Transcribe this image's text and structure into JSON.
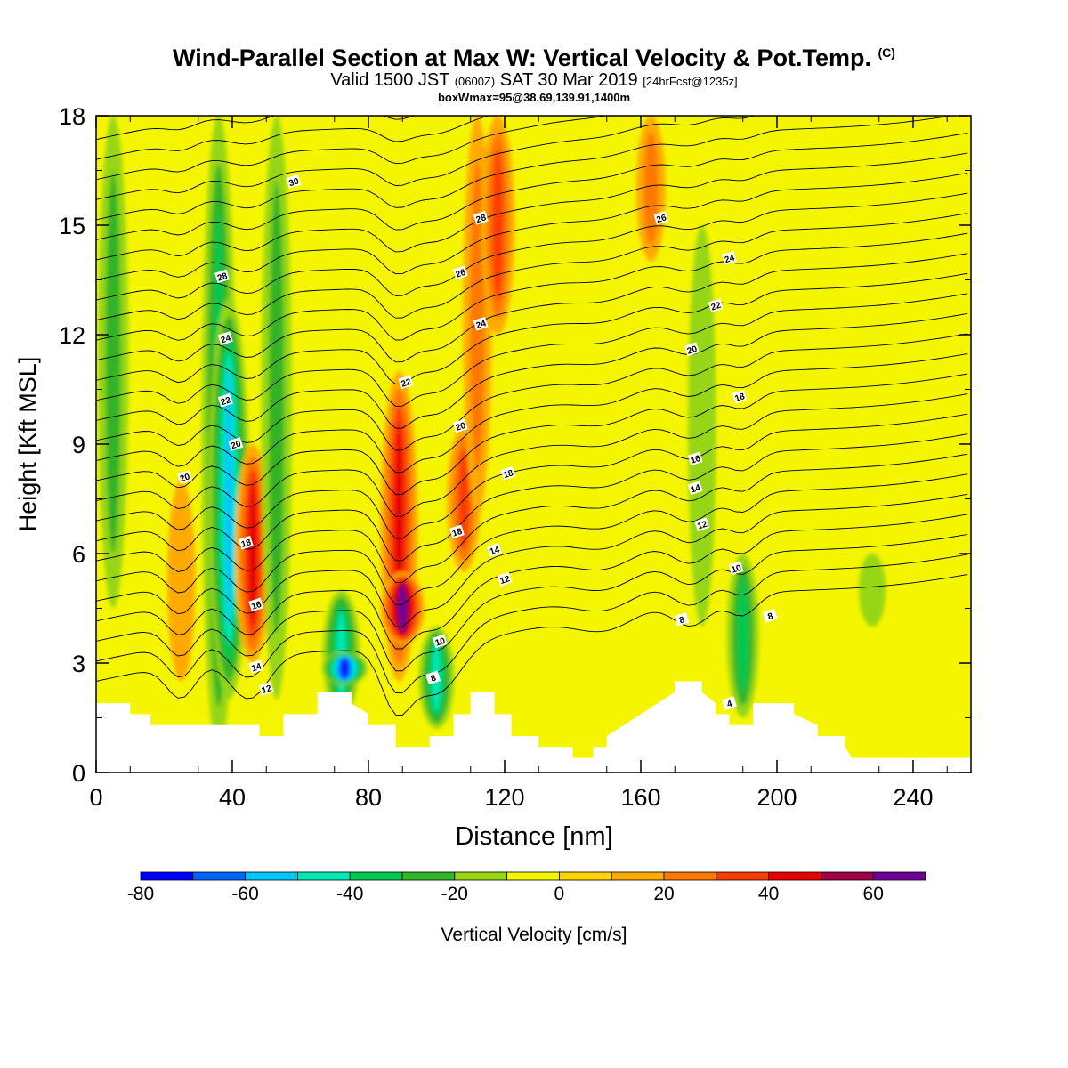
{
  "title": {
    "main": "Wind-Parallel Section at Max W: Vertical Velocity & Pot.Temp.",
    "copyright": "(C)",
    "valid_prefix": "Valid 1500 JST",
    "valid_utc": "(0600Z)",
    "valid_date": "SAT 30 Mar 2019",
    "forecast": "[24hrFcst@1235z]",
    "box": "boxWmax=95@38.69,139.91,1400m"
  },
  "chart_data": {
    "type": "heatmap",
    "xlabel": "Distance [nm]",
    "ylabel": "Height [Kft MSL]",
    "xlim": [
      0,
      257
    ],
    "ylim": [
      0,
      18
    ],
    "x_ticks": [
      "0",
      "40",
      "80",
      "120",
      "160",
      "200",
      "240"
    ],
    "y_ticks": [
      "0",
      "3",
      "6",
      "9",
      "12",
      "15",
      "18"
    ],
    "colorbar": {
      "label": "Vertical Velocity [cm/s]",
      "bins": [
        -80,
        -70,
        -60,
        -50,
        -40,
        -30,
        -20,
        -10,
        0,
        10,
        20,
        30,
        40,
        50,
        60,
        70
      ],
      "tick_labels": [
        "-80",
        "-60",
        "-40",
        "-20",
        "0",
        "20",
        "40",
        "60"
      ],
      "colors": [
        "#0000ff",
        "#0064ff",
        "#00c8ff",
        "#00e6b4",
        "#00c850",
        "#32b428",
        "#96d614",
        "#f5f500",
        "#ffd200",
        "#ffaa00",
        "#ff7800",
        "#ff3c00",
        "#e60000",
        "#a00046",
        "#6e0096"
      ]
    },
    "terrain_profile": [
      [
        0,
        1.9
      ],
      [
        10,
        1.9
      ],
      [
        10,
        1.6
      ],
      [
        16,
        1.6
      ],
      [
        16,
        1.3
      ],
      [
        48,
        1.3
      ],
      [
        48,
        1.0
      ],
      [
        55,
        1.0
      ],
      [
        55,
        1.6
      ],
      [
        65,
        1.6
      ],
      [
        65,
        2.2
      ],
      [
        75,
        2.2
      ],
      [
        75,
        1.9
      ],
      [
        80,
        1.6
      ],
      [
        80,
        1.3
      ],
      [
        88,
        1.3
      ],
      [
        88,
        0.7
      ],
      [
        98,
        0.7
      ],
      [
        98,
        1.0
      ],
      [
        105,
        1.0
      ],
      [
        105,
        1.6
      ],
      [
        110,
        1.6
      ],
      [
        110,
        2.2
      ],
      [
        117,
        2.2
      ],
      [
        117,
        1.6
      ],
      [
        122,
        1.6
      ],
      [
        122,
        1.0
      ],
      [
        130,
        1.0
      ],
      [
        130,
        0.7
      ],
      [
        140,
        0.7
      ],
      [
        140,
        0.4
      ],
      [
        146,
        0.4
      ],
      [
        146,
        0.7
      ],
      [
        150,
        0.7
      ],
      [
        150,
        1.0
      ],
      [
        155,
        1.3
      ],
      [
        160,
        1.6
      ],
      [
        165,
        1.9
      ],
      [
        170,
        2.2
      ],
      [
        170,
        2.5
      ],
      [
        178,
        2.5
      ],
      [
        178,
        2.2
      ],
      [
        182,
        1.9
      ],
      [
        182,
        1.6
      ],
      [
        186,
        1.6
      ],
      [
        186,
        1.3
      ],
      [
        193,
        1.3
      ],
      [
        193,
        1.9
      ],
      [
        205,
        1.9
      ],
      [
        205,
        1.6
      ],
      [
        212,
        1.3
      ],
      [
        212,
        1.0
      ],
      [
        220,
        1.0
      ],
      [
        220,
        0.7
      ],
      [
        222,
        0.4
      ],
      [
        257,
        0.4
      ]
    ],
    "vertical_velocity_features": [
      {
        "x": 5,
        "y0": 4.5,
        "y1": 18,
        "w": -25
      },
      {
        "x": 25,
        "y0": 2.5,
        "y1": 8,
        "w": 18
      },
      {
        "x": 36,
        "y0": 0.5,
        "y1": 18,
        "w": -35
      },
      {
        "x": 39,
        "y0": 2,
        "y1": 13,
        "w": -55
      },
      {
        "x": 46,
        "y0": 3,
        "y1": 9,
        "w": 40
      },
      {
        "x": 53,
        "y0": 2,
        "y1": 18,
        "w": -25
      },
      {
        "x": 72,
        "y0": 1.5,
        "y1": 5,
        "w": -45
      },
      {
        "x": 73,
        "y0": 2.4,
        "y1": 3.3,
        "w": -70
      },
      {
        "x": 89,
        "y0": 2.5,
        "y1": 11,
        "w": 45
      },
      {
        "x": 90,
        "y0": 3.5,
        "y1": 5.5,
        "w": 65
      },
      {
        "x": 100,
        "y0": 1.2,
        "y1": 4,
        "w": -40
      },
      {
        "x": 108,
        "y0": 5.5,
        "y1": 9.5,
        "w": 35
      },
      {
        "x": 112,
        "y0": 7,
        "y1": 18,
        "w": 20
      },
      {
        "x": 118,
        "y0": 12,
        "y1": 18,
        "w": 35
      },
      {
        "x": 163,
        "y0": 14,
        "y1": 18,
        "w": 22
      },
      {
        "x": 178,
        "y0": 4,
        "y1": 15,
        "w": -18
      },
      {
        "x": 190,
        "y0": 1.5,
        "y1": 6,
        "w": -30
      },
      {
        "x": 228,
        "y0": 4,
        "y1": 6,
        "w": -15
      }
    ],
    "theta_contours": {
      "labels": [
        "30",
        "28",
        "26",
        "24",
        "22",
        "20",
        "18",
        "16",
        "14",
        "12",
        "10",
        "8",
        "4"
      ]
    }
  }
}
